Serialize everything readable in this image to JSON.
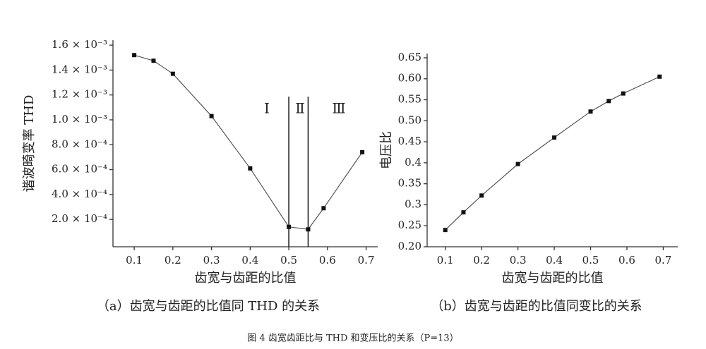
{
  "chart_data": [
    {
      "type": "line",
      "color": "#555555",
      "marker_color": "#111111",
      "x_label": "齿宽与齿距的比值",
      "y_label": "谐波畸变率 THD",
      "caption": "（a）齿宽与齿距的比值同 THD 的关系",
      "x": [
        0.1,
        0.15,
        0.2,
        0.3,
        0.4,
        0.5,
        0.55,
        0.59,
        0.69
      ],
      "values": [
        0.00152,
        0.001475,
        0.00137,
        0.00103,
        0.00061,
        0.00014,
        0.00012,
        0.00029,
        0.00074
      ],
      "xlim": [
        0.045,
        0.73
      ],
      "xticks": [
        0.1,
        0.2,
        0.3,
        0.4,
        0.5,
        0.6,
        0.7
      ],
      "ylim": [
        -2e-05,
        0.00164
      ],
      "yticks": [
        {
          "value": 0.0002,
          "label": "2.0 × 10⁻⁴"
        },
        {
          "value": 0.0004,
          "label": "4.0 × 10⁻⁴"
        },
        {
          "value": 0.0006,
          "label": "6.0 × 10⁻⁴"
        },
        {
          "value": 0.0008,
          "label": "8.0 × 10⁻⁴"
        },
        {
          "value": 0.001,
          "label": "1.0 × 10⁻³"
        },
        {
          "value": 0.0012,
          "label": "1.2 × 10⁻³"
        },
        {
          "value": 0.0014,
          "label": "1.4 × 10⁻³"
        },
        {
          "value": 0.0016,
          "label": "1.6 × 10⁻³"
        }
      ],
      "vlines": [
        0.5,
        0.55
      ],
      "annotations": [
        "Ⅰ",
        "Ⅱ",
        "Ⅲ"
      ]
    },
    {
      "type": "line",
      "color": "#555555",
      "marker_color": "#111111",
      "x_label": "齿宽与齿距的比值",
      "y_label": "电压比",
      "caption": "（b）齿宽与齿距的比值同变比的关系",
      "x": [
        0.1,
        0.15,
        0.2,
        0.3,
        0.4,
        0.5,
        0.55,
        0.59,
        0.69
      ],
      "values": [
        0.24,
        0.282,
        0.322,
        0.397,
        0.46,
        0.522,
        0.547,
        0.565,
        0.605
      ],
      "xlim": [
        0.05,
        0.74
      ],
      "xticks": [
        0.1,
        0.2,
        0.3,
        0.4,
        0.5,
        0.6,
        0.7
      ],
      "ylim": [
        0.2,
        0.66
      ],
      "yticks": [
        {
          "value": 0.2,
          "label": "0.20"
        },
        0.25,
        0.3,
        0.35,
        0.4,
        0.45,
        {
          "value": 0.5,
          "label": "0.50"
        },
        0.55,
        {
          "value": 0.6,
          "label": "0.60"
        },
        0.65
      ]
    }
  ],
  "figure_caption": "图 4 齿宽齿距比与 THD 和变压比的关系（P=13）"
}
